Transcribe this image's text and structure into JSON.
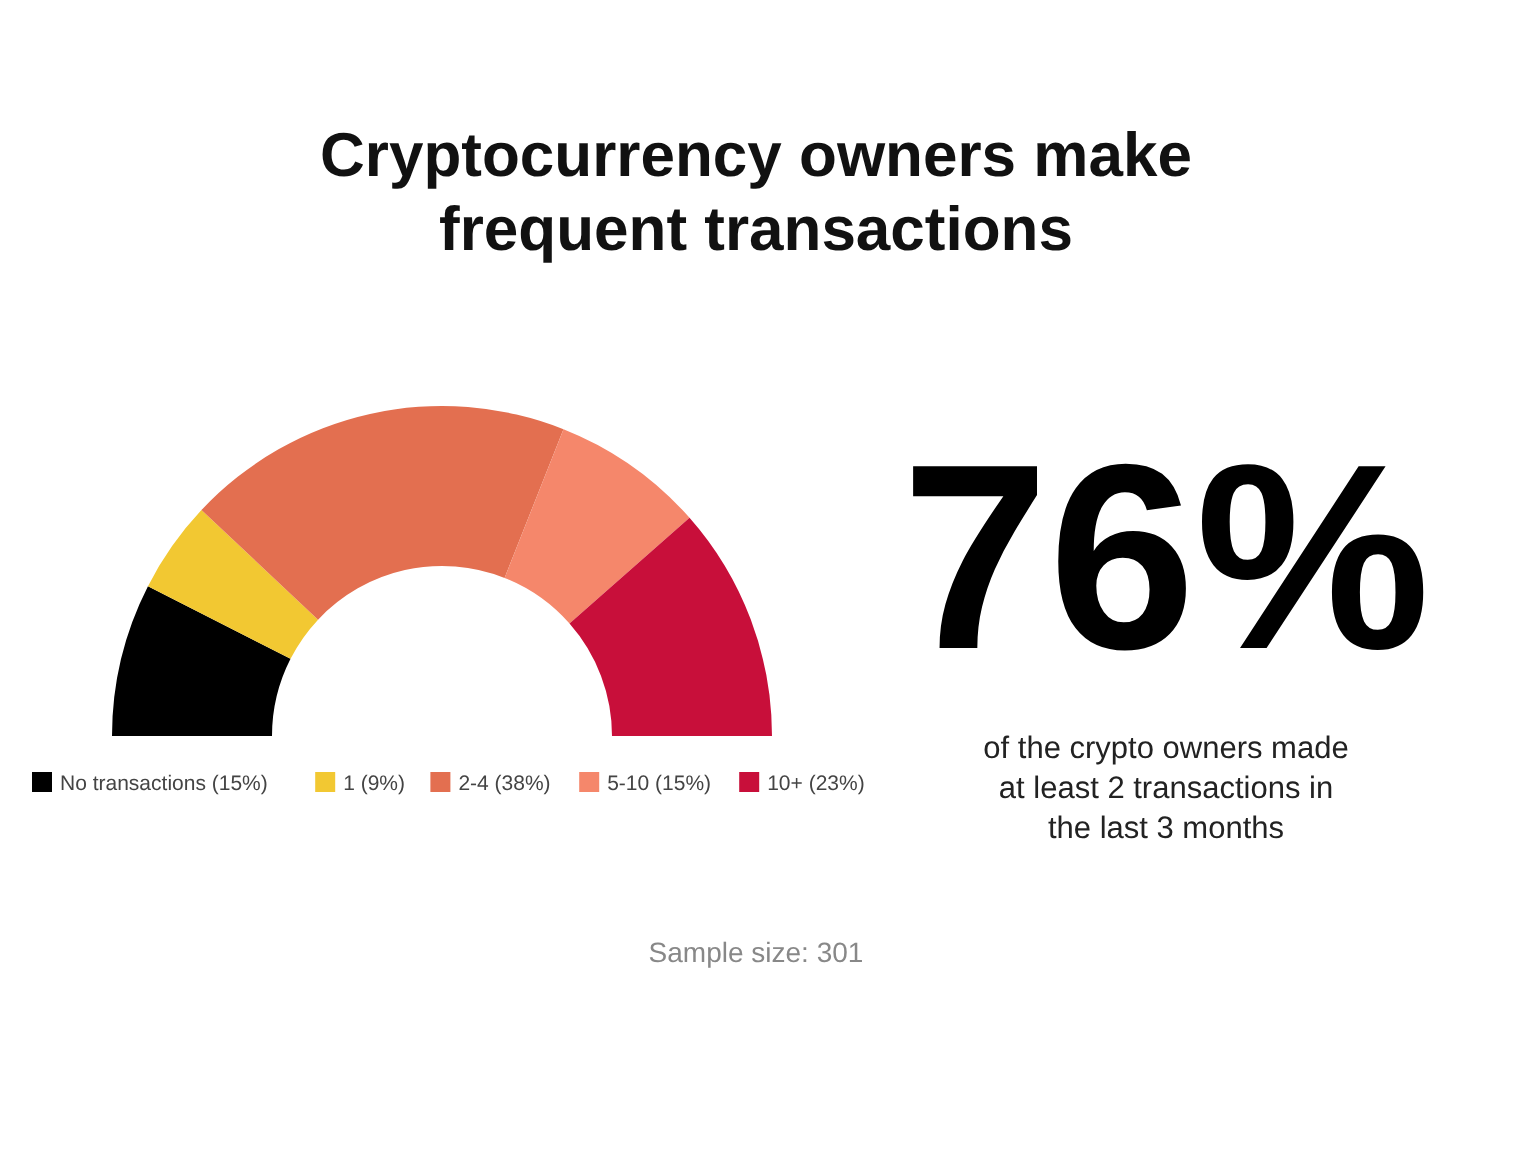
{
  "chart_data": {
    "type": "donut",
    "title": "Cryptocurrency owners make frequent transactions",
    "categories": [
      "No transactions (15%)",
      "1 (9%)",
      "2-4 (38%)",
      "5-10 (15%)",
      "10+ (23%)"
    ],
    "values": [
      15,
      9,
      38,
      15,
      23
    ],
    "colors": [
      "#000000",
      "#f2c832",
      "#e36f50",
      "#f5876b",
      "#c80f3a"
    ],
    "legend": "bottom",
    "annotations": [
      "76%",
      "of the crypto owners made at least 2 transactions in the last 3 months",
      "Sample size: 301"
    ]
  }
}
